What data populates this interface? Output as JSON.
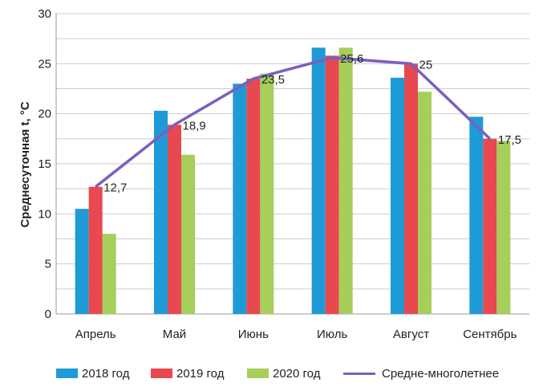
{
  "chart_data": {
    "type": "bar",
    "title": "",
    "xlabel": "",
    "ylabel": "Среднесуточная t, °C",
    "ylim": [
      0,
      30
    ],
    "yticks": [
      "0",
      "5",
      "10",
      "15",
      "20",
      "25",
      "30"
    ],
    "categories": [
      "Апрель",
      "Май",
      "Июнь",
      "Июль",
      "Август",
      "Сентябрь"
    ],
    "series": [
      {
        "name": "2018 год",
        "type": "bar",
        "color": "#1E9BD7",
        "values": [
          10.5,
          20.3,
          23.0,
          26.6,
          23.6,
          19.7
        ]
      },
      {
        "name": "2019 год",
        "type": "bar",
        "color": "#E8484F",
        "values": [
          12.7,
          18.9,
          23.5,
          25.8,
          25.0,
          17.5
        ]
      },
      {
        "name": "2020 год",
        "type": "bar",
        "color": "#A6CE5A",
        "values": [
          8.0,
          15.9,
          24.0,
          26.6,
          22.2,
          17.3
        ]
      },
      {
        "name": "Средне-многолетнее",
        "type": "line",
        "color": "#7B5FBF",
        "values": [
          12.7,
          18.9,
          23.5,
          25.6,
          25,
          17.5
        ],
        "labels": [
          "12,7",
          "18,9",
          "23,5",
          "25,6",
          "25",
          "17,5"
        ]
      }
    ],
    "grid": true,
    "legend_position": "bottom"
  }
}
